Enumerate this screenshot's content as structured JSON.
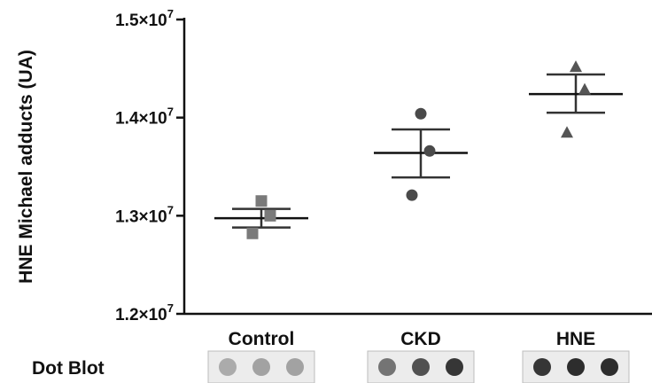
{
  "chart_data": {
    "type": "scatter",
    "ylabel": "HNE Michael adducts (UA)",
    "ylim": [
      12000000,
      15000000
    ],
    "yticks": [
      {
        "value": 12000000,
        "mant": "1.2×10",
        "exp": "7"
      },
      {
        "value": 13000000,
        "mant": "1.3×10",
        "exp": "7"
      },
      {
        "value": 14000000,
        "mant": "1.4×10",
        "exp": "7"
      },
      {
        "value": 15000000,
        "mant": "1.5×10",
        "exp": "7"
      }
    ],
    "categories": [
      "Control",
      "CKD",
      "HNE"
    ],
    "series": [
      {
        "category": "Control",
        "marker": "square",
        "color": "#7a7a7a",
        "points": [
          13150000,
          13000000,
          12820000
        ],
        "mean": 12975000,
        "sem_low": 12880000,
        "sem_high": 13070000
      },
      {
        "category": "CKD",
        "marker": "circle",
        "color": "#4a4a4a",
        "points": [
          14040000,
          13660000,
          13210000
        ],
        "mean": 13640000,
        "sem_low": 13390000,
        "sem_high": 13880000
      },
      {
        "category": "HNE",
        "marker": "triangle",
        "color": "#555555",
        "points": [
          14520000,
          14290000,
          13850000
        ],
        "mean": 14240000,
        "sem_low": 14050000,
        "sem_high": 14440000
      }
    ],
    "grid": false,
    "legend": "none"
  },
  "dot_blot": {
    "label": "Dot Blot",
    "panels": [
      {
        "category": "Control",
        "spots": [
          0.25,
          0.3,
          0.3
        ]
      },
      {
        "category": "CKD",
        "spots": [
          0.55,
          0.75,
          0.9
        ]
      },
      {
        "category": "HNE",
        "spots": [
          0.9,
          0.95,
          0.95
        ]
      }
    ]
  }
}
